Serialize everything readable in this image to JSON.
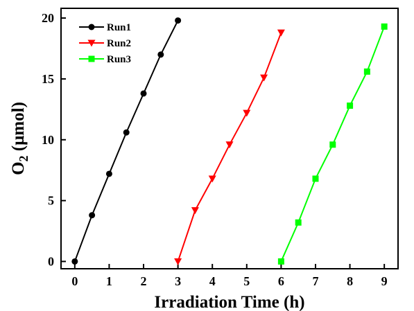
{
  "chart_data": {
    "type": "line",
    "xlabel": "Irradiation Time (h)",
    "ylabel": {
      "prefix": "O",
      "subscript": "2",
      "suffix": " (μmol)"
    },
    "xlim": [
      -0.4,
      9.4
    ],
    "ylim": [
      -0.6,
      20.8
    ],
    "xticks": [
      0,
      1,
      2,
      3,
      4,
      5,
      6,
      7,
      8,
      9
    ],
    "yticks": [
      0,
      5,
      10,
      15,
      20
    ],
    "legend_position": "top-left",
    "series": [
      {
        "name": "Run1",
        "color": "#000000",
        "marker": "circle",
        "x": [
          0,
          0.5,
          1,
          1.5,
          2,
          2.5,
          3
        ],
        "y": [
          0,
          3.8,
          7.2,
          10.6,
          13.8,
          17.0,
          19.8
        ]
      },
      {
        "name": "Run2",
        "color": "#ff0000",
        "marker": "triangle-down",
        "x": [
          3,
          3.5,
          4,
          4.5,
          5,
          5.5,
          6
        ],
        "y": [
          0,
          4.2,
          6.8,
          9.6,
          12.2,
          15.1,
          18.8
        ]
      },
      {
        "name": "Run3",
        "color": "#00ff00",
        "marker": "square",
        "x": [
          6,
          6.5,
          7,
          7.5,
          8,
          8.5,
          9
        ],
        "y": [
          0,
          3.2,
          6.8,
          9.6,
          12.8,
          15.6,
          19.3
        ]
      }
    ]
  }
}
